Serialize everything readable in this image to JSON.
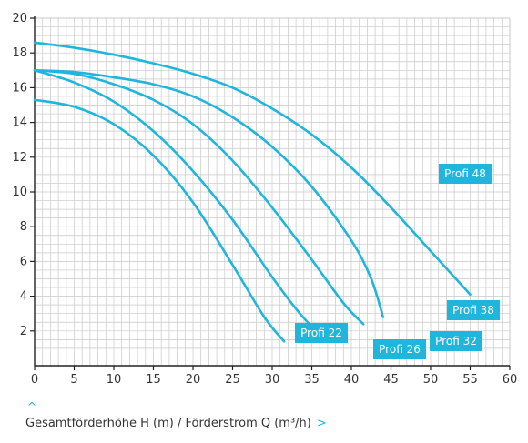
{
  "caption": {
    "text": "Gesamtförderhöhe H (m) / Förderstrom Q (m³/h)",
    "chevron_right": ">",
    "chevron_up": "^"
  },
  "colors": {
    "curve": "#1fb5dc",
    "label_bg": "#1fb5dc",
    "grid": "#c8c8c8",
    "axis": "#222222"
  },
  "chart_data": {
    "type": "line",
    "title": "",
    "xlabel": "",
    "ylabel": "",
    "xlim": [
      0,
      60
    ],
    "ylim": [
      0,
      20
    ],
    "x_ticks": [
      0,
      5,
      10,
      15,
      20,
      25,
      30,
      35,
      40,
      45,
      50,
      55,
      60
    ],
    "y_ticks": [
      2,
      4,
      6,
      8,
      10,
      12,
      14,
      16,
      18,
      20
    ],
    "grid": true,
    "series": [
      {
        "name": "Profi 22",
        "x": [
          0,
          5,
          10,
          15,
          20,
          25,
          29,
          31.5
        ],
        "y": [
          15.3,
          14.9,
          13.9,
          12.1,
          9.4,
          5.8,
          2.8,
          1.4
        ]
      },
      {
        "name": "Profi 26",
        "x": [
          0,
          5,
          10,
          15,
          20,
          25,
          30,
          33.5,
          36
        ],
        "y": [
          17,
          16.3,
          15.2,
          13.5,
          11.2,
          8.4,
          5.1,
          3.0,
          1.8
        ]
      },
      {
        "name": "Profi 32",
        "x": [
          0,
          5,
          10,
          15,
          20,
          25,
          30,
          35,
          39,
          41.5
        ],
        "y": [
          17,
          16.8,
          16.2,
          15.3,
          13.9,
          11.8,
          9.1,
          6.1,
          3.6,
          2.4
        ]
      },
      {
        "name": "Profi 38",
        "x": [
          0,
          5,
          10,
          15,
          20,
          25,
          30,
          35,
          40,
          42.5,
          44
        ],
        "y": [
          17,
          16.9,
          16.6,
          16.2,
          15.5,
          14.3,
          12.6,
          10.3,
          7.2,
          5.0,
          2.8
        ]
      },
      {
        "name": "Profi 48",
        "x": [
          0,
          5,
          10,
          15,
          20,
          25,
          30,
          35,
          40,
          45,
          50,
          55
        ],
        "y": [
          18.6,
          18.3,
          17.9,
          17.4,
          16.8,
          16.0,
          14.8,
          13.3,
          11.4,
          9.1,
          6.6,
          4.1
        ]
      }
    ]
  }
}
